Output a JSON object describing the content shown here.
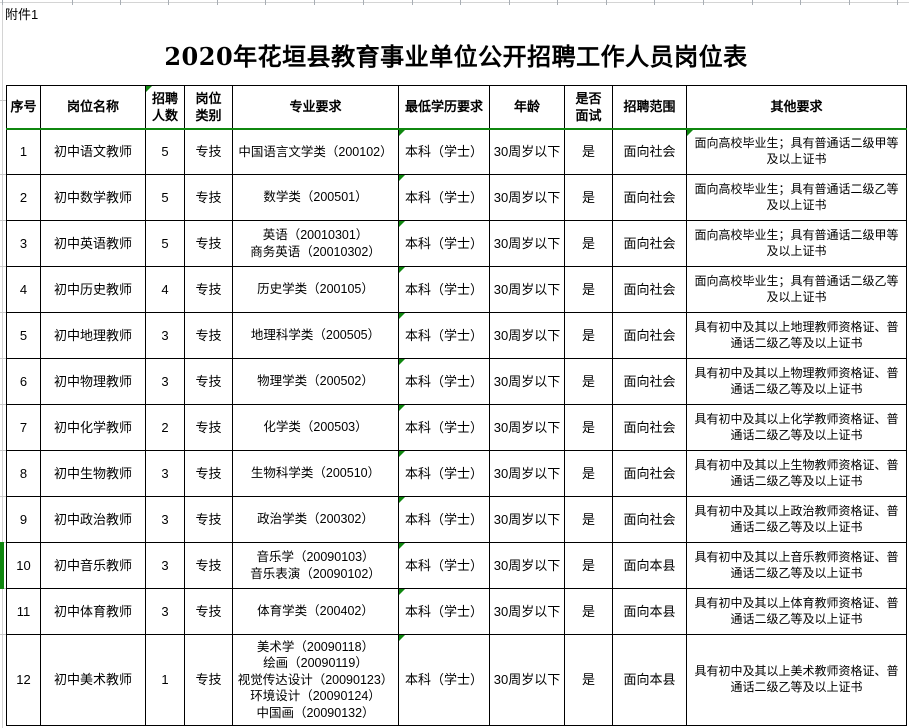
{
  "attachment_label": "附件1",
  "title": "2020年花垣县教育事业单位公开招聘工作人员岗位表",
  "colors": {
    "error_marker_green": "#0f870f",
    "grid_border": "#000000",
    "background": "#ffffff"
  },
  "table": {
    "headers": [
      "序号",
      "岗位名称",
      "招聘\n人数",
      "岗位\n类别",
      "专业要求",
      "最低学历要求",
      "年龄",
      "是否\n面试",
      "招聘范围",
      "其他要求"
    ],
    "rows": [
      [
        "1",
        "初中语文教师",
        "5",
        "专技",
        "中国语言文学类（200102）",
        "本科（学士）",
        "30周岁以下",
        "是",
        "面向社会",
        "面向高校毕业生；具有普通话二级甲等及以上证书"
      ],
      [
        "2",
        "初中数学教师",
        "5",
        "专技",
        "数学类（200501）",
        "本科（学士）",
        "30周岁以下",
        "是",
        "面向社会",
        "面向高校毕业生；具有普通话二级乙等及以上证书"
      ],
      [
        "3",
        "初中英语教师",
        "5",
        "专技",
        "英语（20010301）\n商务英语（20010302）",
        "本科（学士）",
        "30周岁以下",
        "是",
        "面向社会",
        "面向高校毕业生；具有普通话二级甲等及以上证书"
      ],
      [
        "4",
        "初中历史教师",
        "4",
        "专技",
        "历史学类（200105）",
        "本科（学士）",
        "30周岁以下",
        "是",
        "面向社会",
        "面向高校毕业生；具有普通话二级乙等及以上证书"
      ],
      [
        "5",
        "初中地理教师",
        "3",
        "专技",
        "地理科学类（200505）",
        "本科（学士）",
        "30周岁以下",
        "是",
        "面向社会",
        "具有初中及其以上地理教师资格证、普通话二级乙等及以上证书"
      ],
      [
        "6",
        "初中物理教师",
        "3",
        "专技",
        "物理学类（200502）",
        "本科（学士）",
        "30周岁以下",
        "是",
        "面向社会",
        "具有初中及其以上物理教师资格证、普通话二级乙等及以上证书"
      ],
      [
        "7",
        "初中化学教师",
        "2",
        "专技",
        "化学类（200503）",
        "本科（学士）",
        "30周岁以下",
        "是",
        "面向社会",
        "具有初中及其以上化学教师资格证、普通话二级乙等及以上证书"
      ],
      [
        "8",
        "初中生物教师",
        "3",
        "专技",
        "生物科学类（200510）",
        "本科（学士）",
        "30周岁以下",
        "是",
        "面向社会",
        "具有初中及其以上生物教师资格证、普通话二级乙等及以上证书"
      ],
      [
        "9",
        "初中政治教师",
        "3",
        "专技",
        "政治学类（200302）",
        "本科（学士）",
        "30周岁以下",
        "是",
        "面向社会",
        "具有初中及其以上政治教师资格证、普通话二级乙等及以上证书"
      ],
      [
        "10",
        "初中音乐教师",
        "3",
        "专技",
        "音乐学（20090103）\n音乐表演（20090102）",
        "本科（学士）",
        "30周岁以下",
        "是",
        "面向本县",
        "具有初中及其以上音乐教师资格证、普通话二级乙等及以上证书"
      ],
      [
        "11",
        "初中体育教师",
        "3",
        "专技",
        "体育学类（200402）",
        "本科（学士）",
        "30周岁以下",
        "是",
        "面向本县",
        "具有初中及其以上体育教师资格证、普通话二级乙等及以上证书"
      ],
      [
        "12",
        "初中美术教师",
        "1",
        "专技",
        "美术学（20090118）\n绘画（20090119）\n视觉传达设计（20090123）\n环境设计（20090124）\n中国画（20090132）",
        "本科（学士）",
        "30周岁以下",
        "是",
        "面向本县",
        "具有初中及其以上美术教师资格证、普通话二级乙等及以上证书"
      ]
    ]
  }
}
